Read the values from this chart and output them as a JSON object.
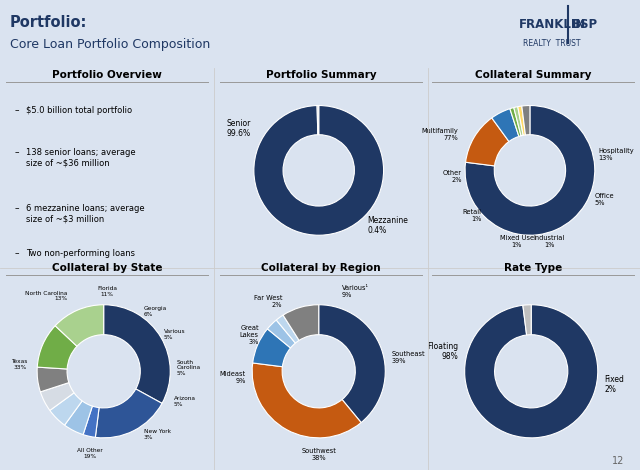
{
  "bg_color": "#dae3f0",
  "header_title": "Portfolio:",
  "header_subtitle": "Core Loan Portfolio Composition",
  "portfolio_overview_title": "Portfolio Overview",
  "portfolio_overview_bullets": [
    "$5.0 billion total portfolio",
    "138 senior loans; average\nsize of ~$36 million",
    "6 mezzanine loans; average\nsize of ~$3 million",
    "Two non-performing loans"
  ],
  "portfolio_summary": {
    "title": "Portfolio Summary",
    "values": [
      99.6,
      0.4
    ],
    "colors": [
      "#1f3864",
      "#bfbfbf"
    ],
    "labels": [
      "Senior\n99.6%",
      "Mezzanine\n0.4%"
    ]
  },
  "collateral_summary": {
    "title": "Collateral Summary",
    "values": [
      77,
      13,
      5,
      1,
      1,
      1,
      2
    ],
    "colors": [
      "#1f3864",
      "#c55a11",
      "#2e75b6",
      "#70ad47",
      "#a9d18e",
      "#ffd966",
      "#808080"
    ],
    "labels": [
      "Multifamily\n77%",
      "Hospitality\n13%",
      "Office\n5%",
      "Industrial\n1%",
      "Mixed Use\n1%",
      "Retail\n1%",
      "Other\n2%"
    ]
  },
  "collateral_by_state": {
    "title": "Collateral by State",
    "values": [
      33,
      19,
      3,
      5,
      5,
      5,
      6,
      11,
      13
    ],
    "colors": [
      "#1f3864",
      "#2e5597",
      "#4472c4",
      "#9dc3e6",
      "#bdd7ee",
      "#d6dce4",
      "#808080",
      "#70ad47",
      "#a9d18e"
    ],
    "labels": [
      "Texas\n33%",
      "All Other\n19%",
      "New York\n3%",
      "Arizona\n5%",
      "South\nCarolina\n5%",
      "Various\n5%",
      "Georgia\n6%",
      "Florida\n11%",
      "North Carolina\n13%"
    ]
  },
  "collateral_by_region": {
    "title": "Collateral by Region",
    "values": [
      39,
      38,
      9,
      3,
      2,
      9
    ],
    "colors": [
      "#1f3864",
      "#c55a11",
      "#2e75b6",
      "#9dc3e6",
      "#bdd7ee",
      "#808080"
    ],
    "labels": [
      "Southeast\n39%",
      "Southwest\n38%",
      "Mideast\n9%",
      "Great Lakes\n3%",
      "Far West\n2%",
      "Various¹\n9%"
    ]
  },
  "rate_type": {
    "title": "Rate Type",
    "values": [
      98,
      2
    ],
    "colors": [
      "#1f3864",
      "#bfbfbf"
    ],
    "labels": [
      "Floating\n98%",
      "Fixed\n2%"
    ]
  },
  "page_num": "12"
}
